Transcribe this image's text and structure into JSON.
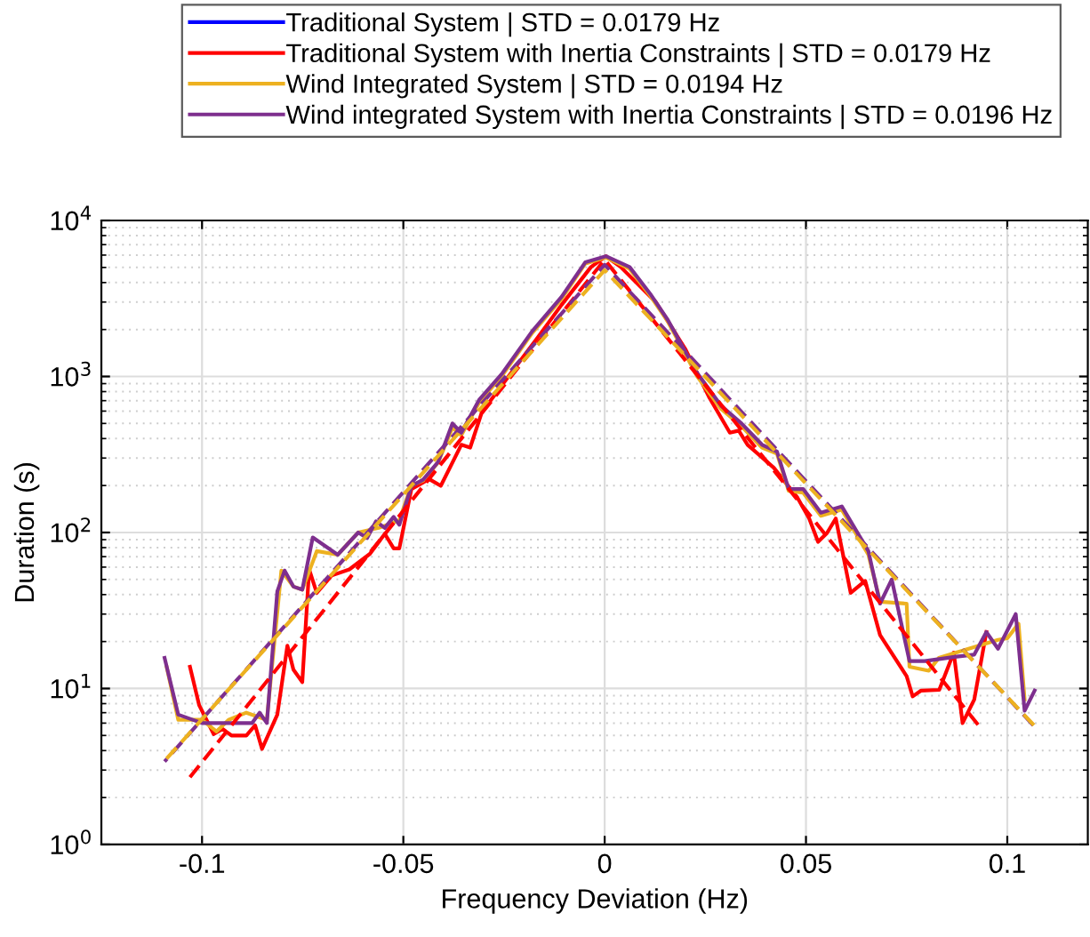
{
  "chart_data": {
    "type": "line",
    "xlabel": "Frequency Deviation (Hz)",
    "ylabel": "Duration (s)",
    "log": "y",
    "grid": true,
    "legend": "top",
    "marker": "none",
    "xlim": [
      -0.125,
      0.12
    ],
    "xticks": [
      -0.1,
      -0.05,
      0,
      0.05,
      0.1
    ],
    "ylim": [
      1,
      10000
    ],
    "yticks": [
      {
        "value": 1,
        "label": "10$^{0}$"
      },
      {
        "value": 10,
        "label": "10$^{1}$"
      },
      {
        "value": 100,
        "label": "10$^{2}$"
      },
      {
        "value": 1000,
        "label": "10$^{3}$"
      },
      {
        "value": 10000,
        "label": "10$^{4}$"
      }
    ],
    "series": [
      {
        "name": "Traditional System | STD = 0.0179 Hz",
        "color": "#0000ff",
        "line_style": "solid"
      },
      {
        "name": "Traditional System with Inertia Constraints | STD = 0.0179 Hz",
        "color": "#ff0000",
        "line_style": "solid",
        "x": [
          -0.103,
          -0.1007,
          -0.0971,
          -0.0949,
          -0.0927,
          -0.089,
          -0.0868,
          -0.0851,
          -0.0813,
          -0.0788,
          -0.0773,
          -0.0751,
          -0.0734,
          -0.0715,
          -0.0678,
          -0.0634,
          -0.0583,
          -0.0546,
          -0.0524,
          -0.051,
          -0.048,
          -0.0436,
          -0.0407,
          -0.0356,
          -0.0334,
          -0.0305,
          -0.0239,
          -0.0166,
          -0.0107,
          -0.0034,
          0.0003,
          0.004,
          0.0127,
          0.0201,
          0.0259,
          0.0311,
          0.0333,
          0.0355,
          0.042,
          0.0479,
          0.0508,
          0.053,
          0.0552,
          0.0574,
          0.0611,
          0.0647,
          0.0684,
          0.075,
          0.0765,
          0.0786,
          0.0831,
          0.0867,
          0.0889,
          0.0918,
          0.0948
        ],
        "values": [
          13.8,
          7.8,
          5.1,
          5.5,
          5.0,
          5.0,
          5.8,
          4.1,
          6.8,
          18.8,
          13.2,
          11,
          58,
          41,
          53,
          58,
          73,
          98,
          79,
          79,
          190,
          220,
          199,
          365,
          350,
          590,
          1000,
          1780,
          2880,
          5030,
          5900,
          5030,
          3000,
          1490,
          740,
          436,
          450,
          365,
          260,
          167,
          123,
          87,
          99,
          123,
          41,
          49,
          22,
          12,
          8.9,
          9.7,
          9.8,
          17,
          6.0,
          8.5,
          23
        ]
      },
      {
        "name": "Wind Integrated System | STD = 0.0194 Hz",
        "color": "#edb120",
        "line_style": "solid",
        "x": [
          -0.1088,
          -0.1059,
          -0.1,
          -0.0964,
          -0.0934,
          -0.089,
          -0.0839,
          -0.0803,
          -0.0773,
          -0.0751,
          -0.0715,
          -0.0663,
          -0.0612,
          -0.0561,
          -0.051,
          -0.048,
          -0.0451,
          -0.0414,
          -0.0378,
          -0.0356,
          -0.0312,
          -0.0254,
          -0.018,
          -0.0107,
          -0.0048,
          0.0003,
          0.0062,
          0.0113,
          0.0157,
          0.023,
          0.0289,
          0.034,
          0.0391,
          0.0428,
          0.0457,
          0.0493,
          0.0537,
          0.0589,
          0.0655,
          0.0684,
          0.075,
          0.0757,
          0.0805,
          0.083,
          0.0904,
          0.0977,
          0.1,
          0.1028,
          0.1043
        ],
        "values": [
          13.8,
          6.3,
          6.3,
          5.3,
          6.3,
          7.0,
          6.3,
          57,
          45,
          43,
          76,
          72,
          100,
          107,
          120,
          200,
          215,
          280,
          470,
          420,
          680,
          1020,
          1900,
          3150,
          5300,
          5800,
          4900,
          3300,
          2250,
          1000,
          620,
          480,
          350,
          320,
          185,
          180,
          128,
          140,
          72,
          36,
          35,
          13.8,
          13,
          15.7,
          18,
          20.5,
          21,
          26,
          8.5
        ]
      },
      {
        "name": "Wind integrated System with Inertia Constraints | STD = 0.0196 Hz",
        "color": "#7e2f8e",
        "line_style": "solid",
        "x": [
          -0.1093,
          -0.1059,
          -0.1,
          -0.0876,
          -0.0857,
          -0.0839,
          -0.0813,
          -0.0795,
          -0.0773,
          -0.0751,
          -0.0725,
          -0.0663,
          -0.0612,
          -0.059,
          -0.0568,
          -0.0546,
          -0.0524,
          -0.051,
          -0.048,
          -0.0451,
          -0.0414,
          -0.0378,
          -0.0356,
          -0.0312,
          -0.0254,
          -0.018,
          -0.0107,
          -0.0048,
          0.0003,
          0.0062,
          0.0113,
          0.0157,
          0.023,
          0.0289,
          0.034,
          0.0391,
          0.0428,
          0.0457,
          0.0493,
          0.0537,
          0.0589,
          0.0655,
          0.0684,
          0.0713,
          0.0757,
          0.0795,
          0.0874,
          0.0918,
          0.0948,
          0.0977,
          0.1021,
          0.1043,
          0.1068
        ],
        "values": [
          15.7,
          6.8,
          6.0,
          6.0,
          7.0,
          6.0,
          42,
          57,
          45,
          43,
          93,
          72,
          100,
          92,
          118,
          107,
          126,
          112,
          199,
          218,
          282,
          500,
          436,
          707,
          1050,
          1950,
          3240,
          5400,
          5900,
          5030,
          3390,
          2300,
          1050,
          650,
          500,
          365,
          330,
          190,
          190,
          134,
          147,
          76,
          35,
          50,
          15,
          15,
          16,
          16.5,
          23,
          18,
          30,
          7.2,
          9.7
        ]
      },
      {
        "color": "#ff0000",
        "line_style": "dashed",
        "x": [
          -0.103,
          0,
          0.0936
        ],
        "values": [
          2.7,
          5600,
          5.5
        ]
      },
      {
        "color": "#7e2f8e",
        "line_style": "dashed",
        "x": [
          -0.1093,
          0,
          0.1065
        ],
        "values": [
          3.4,
          5200,
          5.8
        ]
      },
      {
        "color": "#edb120",
        "line_style": "dashed",
        "x": [
          -0.1088,
          0,
          0.1075
        ],
        "values": [
          3.55,
          4800,
          5.5
        ]
      }
    ]
  }
}
